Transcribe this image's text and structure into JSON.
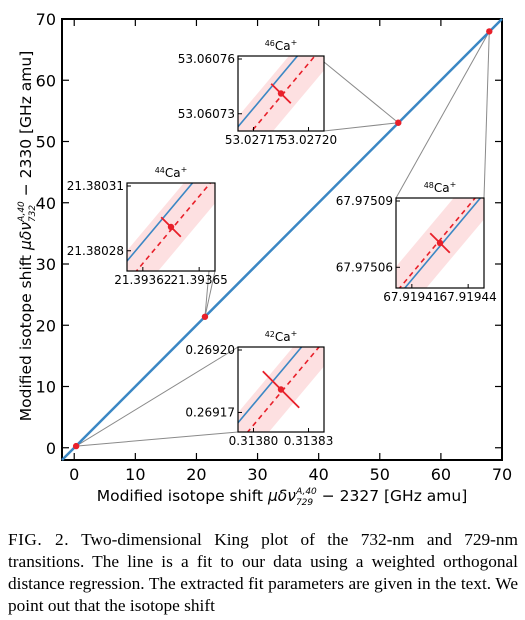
{
  "chart_data": {
    "type": "scatter",
    "xlabel": "Modified isotope shift μδν^{A,40}_{729} − 2327 [GHz amu]",
    "ylabel": "Modified isotope shift μδν^{A,40}_{732} − 2330 [GHz amu]",
    "xlim": [
      -2,
      70
    ],
    "ylim": [
      -2,
      70
    ],
    "x_ticks": [
      "0",
      "10",
      "20",
      "30",
      "40",
      "50",
      "60",
      "70"
    ],
    "y_ticks": [
      "0",
      "10",
      "20",
      "30",
      "40",
      "50",
      "60",
      "70"
    ],
    "fit_line": {
      "x": [
        -2,
        70
      ],
      "y": [
        -2,
        70
      ],
      "color": "#3b87c4"
    },
    "points": [
      {
        "isotope": "42",
        "x": 0.3138,
        "y": 0.2692
      },
      {
        "isotope": "44",
        "x": 21.3936,
        "y": 21.3803
      },
      {
        "isotope": "46",
        "x": 53.0272,
        "y": 53.0607
      },
      {
        "isotope": "48",
        "x": 67.9194,
        "y": 67.9751
      }
    ],
    "point_color": "#e8202a",
    "insets": [
      {
        "isotope": "44",
        "title": "44Ca+",
        "title_sup": "44",
        "title_main": "Ca",
        "title_charge": "+",
        "x_ticks": [
          "21.39362",
          "21.39365"
        ],
        "y_ticks": [
          "21.38031",
          "21.38028"
        ]
      },
      {
        "isotope": "46",
        "title": "46Ca+",
        "title_sup": "46",
        "title_main": "Ca",
        "title_charge": "+",
        "x_ticks": [
          "53.02717",
          "53.02720"
        ],
        "y_ticks": [
          "53.06076",
          "53.06073"
        ]
      },
      {
        "isotope": "48",
        "title": "48Ca+",
        "title_sup": "48",
        "title_main": "Ca",
        "title_charge": "+",
        "x_ticks": [
          "67.91941",
          "67.91944"
        ],
        "y_ticks": [
          "67.97509",
          "67.97506"
        ]
      },
      {
        "isotope": "42",
        "title": "42Ca+",
        "title_sup": "42",
        "title_main": "Ca",
        "title_charge": "+",
        "x_ticks": [
          "0.31380",
          "0.31383"
        ],
        "y_ticks": [
          "0.26920",
          "0.26917"
        ]
      }
    ]
  },
  "caption": {
    "label": "FIG. 2.",
    "text": "Two-dimensional King plot of the 732-nm and 729-nm transitions. The line is a fit to our data using a weighted orthogonal distance regression. The extracted fit parameters are given in the text.  We point out that the isotope shift"
  },
  "colors": {
    "fit_line": "#3b87c4",
    "data_point": "#e8202a",
    "inset_band": "#fde0e1",
    "connector": "#8a8a8a"
  }
}
